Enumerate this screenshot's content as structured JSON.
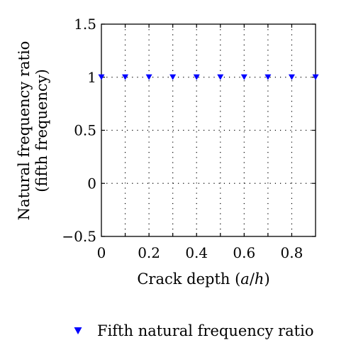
{
  "chart_data": {
    "type": "scatter",
    "xlabel": {
      "prefix": "Crack depth (",
      "var_a": "a",
      "slash": "/",
      "var_h": "h",
      "suffix": ")"
    },
    "ylabel": {
      "line1": "Natural frequency ratio",
      "line2": "(fifth frequency)"
    },
    "xlim": [
      0,
      0.9
    ],
    "ylim": [
      -0.5,
      1.5
    ],
    "x_ticks": [
      0,
      0.2,
      0.4,
      0.6,
      0.8
    ],
    "x_tick_labels": [
      "0",
      "0.2",
      "0.4",
      "0.6",
      "0.8"
    ],
    "x_grid": [
      0.1,
      0.2,
      0.3,
      0.4,
      0.5,
      0.6,
      0.7,
      0.8
    ],
    "y_ticks": [
      -0.5,
      0,
      0.5,
      1,
      1.5
    ],
    "y_tick_labels": [
      "−0.5",
      "0",
      "0.5",
      "1",
      "1.5"
    ],
    "grid": "dotted",
    "legend_position": "bottom-center",
    "series": [
      {
        "name": "Fifth natural frequency ratio",
        "marker": "triangle-down",
        "color": "#0000ff",
        "x": [
          0,
          0.1,
          0.2,
          0.3,
          0.4,
          0.5,
          0.6,
          0.7,
          0.8,
          0.9
        ],
        "y": [
          1,
          1,
          1,
          1,
          1,
          1,
          1,
          1,
          1,
          1
        ]
      }
    ]
  }
}
